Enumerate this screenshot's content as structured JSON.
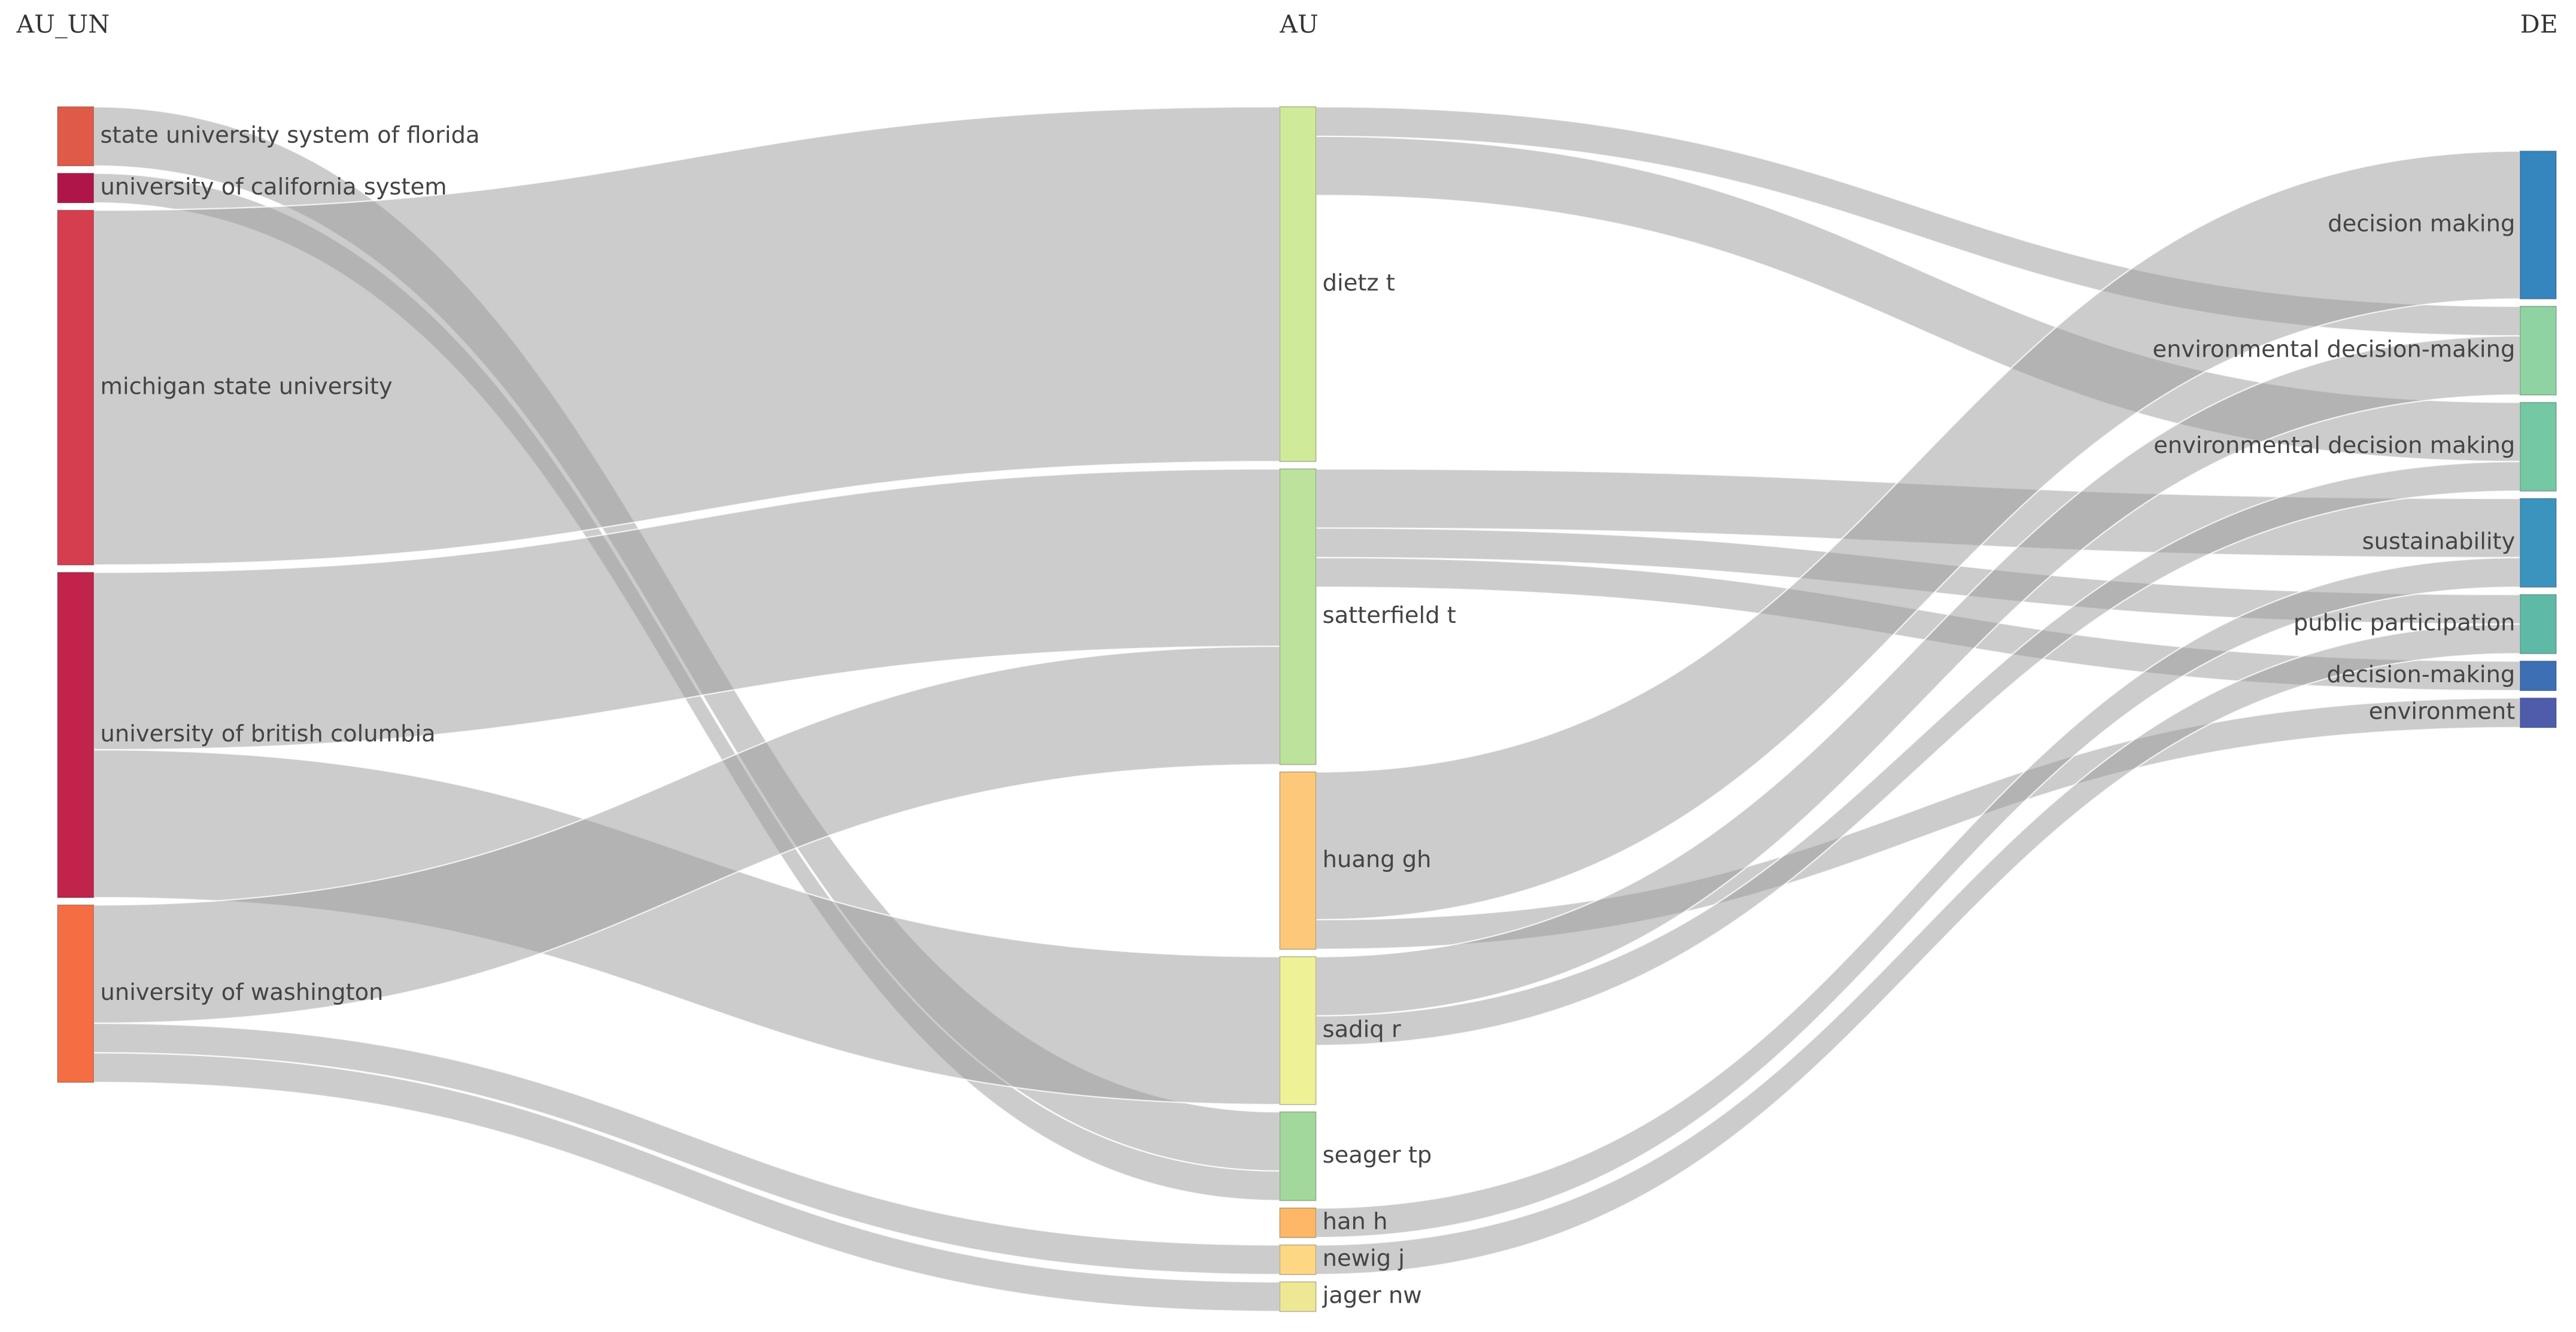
{
  "chart_data": {
    "type": "sankey",
    "columns": [
      {
        "title": "AU_UN",
        "nodes": [
          {
            "name": "state university system of florida",
            "color": "#e05a48"
          },
          {
            "name": "university of california system",
            "color": "#b0154a"
          },
          {
            "name": "michigan state university",
            "color": "#d53e4f"
          },
          {
            "name": "university of british columbia",
            "color": "#c2234a"
          },
          {
            "name": "university of washington",
            "color": "#f46d43"
          }
        ]
      },
      {
        "title": "AU",
        "nodes": [
          {
            "name": "dietz t",
            "color": "#cfea98"
          },
          {
            "name": "satterfield t",
            "color": "#bbe39b"
          },
          {
            "name": "huang gh",
            "color": "#fdc879"
          },
          {
            "name": "sadiq r",
            "color": "#eef195"
          },
          {
            "name": "seager tp",
            "color": "#a2d89b"
          },
          {
            "name": "han h",
            "color": "#fdb767"
          },
          {
            "name": "newig j",
            "color": "#fdd784"
          },
          {
            "name": "jager nw",
            "color": "#eee895"
          }
        ]
      },
      {
        "title": "DE",
        "nodes": [
          {
            "name": "decision making",
            "color": "#3585be"
          },
          {
            "name": "environmental decision-making",
            "color": "#8fd3a2"
          },
          {
            "name": "environmental decision making",
            "color": "#74c8a4"
          },
          {
            "name": "sustainability",
            "color": "#3b94bd"
          },
          {
            "name": "public participation",
            "color": "#5ebaa6"
          },
          {
            "name": "decision-making",
            "color": "#3c6fb4"
          },
          {
            "name": "environment",
            "color": "#4f5cab"
          }
        ]
      }
    ],
    "links": [
      {
        "source": "state university system of florida",
        "target": "seager tp",
        "value": 2
      },
      {
        "source": "university of california system",
        "target": "seager tp",
        "value": 1
      },
      {
        "source": "michigan state university",
        "target": "dietz t",
        "value": 12
      },
      {
        "source": "university of british columbia",
        "target": "satterfield t",
        "value": 6
      },
      {
        "source": "university of british columbia",
        "target": "sadiq r",
        "value": 5
      },
      {
        "source": "university of washington",
        "target": "satterfield t",
        "value": 4
      },
      {
        "source": "university of washington",
        "target": "newig j",
        "value": 1
      },
      {
        "source": "university of washington",
        "target": "jager nw",
        "value": 1
      },
      {
        "source": "dietz t",
        "target": "environmental decision-making",
        "value": 1
      },
      {
        "source": "dietz t",
        "target": "environmental decision making",
        "value": 2
      },
      {
        "source": "satterfield t",
        "target": "sustainability",
        "value": 2
      },
      {
        "source": "satterfield t",
        "target": "public participation",
        "value": 1
      },
      {
        "source": "satterfield t",
        "target": "decision-making",
        "value": 1
      },
      {
        "source": "huang gh",
        "target": "decision making",
        "value": 5
      },
      {
        "source": "huang gh",
        "target": "environment",
        "value": 1
      },
      {
        "source": "sadiq r",
        "target": "environmental decision-making",
        "value": 2
      },
      {
        "source": "sadiq r",
        "target": "environmental decision making",
        "value": 1
      },
      {
        "source": "han h",
        "target": "sustainability",
        "value": 1
      },
      {
        "source": "newig j",
        "target": "public participation",
        "value": 1
      }
    ]
  }
}
